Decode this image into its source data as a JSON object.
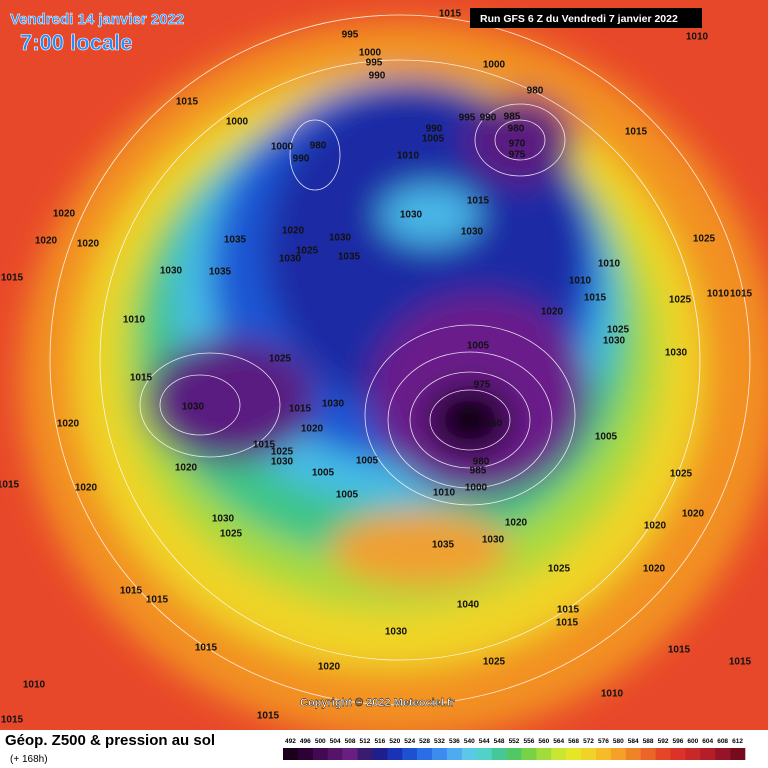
{
  "header": {
    "date": "Vendredi 14 janvier 2022",
    "time": "7:00 locale",
    "run": "Run GFS 6 Z du Vendredi 7 janvier 2022"
  },
  "map": {
    "copyright": "Copyright © 2022 Meteociel.fr",
    "pressure_labels": [
      1015,
      1010,
      995,
      1000,
      995,
      990,
      1000,
      980,
      1015,
      1000,
      985,
      980,
      970,
      975,
      995,
      990,
      990,
      1005,
      1010,
      1000,
      980,
      990,
      1015,
      1015,
      1030,
      1030,
      1035,
      1020,
      1025,
      1030,
      1035,
      1030,
      1020,
      1020,
      1020,
      1015,
      1030,
      1035,
      1010,
      1010,
      1015,
      1020,
      1025,
      1025,
      1010,
      1015,
      1025,
      1030,
      1030,
      1010,
      1005,
      1025,
      975,
      970,
      960,
      1005,
      1015,
      1030,
      1015,
      1030,
      1020,
      1020,
      1015,
      1025,
      1030,
      1005,
      1005,
      980,
      985,
      1000,
      1010,
      1005,
      1020,
      1020,
      1015,
      1030,
      1025,
      1020,
      1035,
      1030,
      1020,
      1020,
      1025,
      1025,
      1020,
      1015,
      1015,
      1040,
      1015,
      1015,
      1030,
      1025,
      1015,
      1020,
      1010,
      1015,
      1015,
      1010,
      1015,
      1015
    ]
  },
  "legend": {
    "title": "Géop. Z500 & pression au sol",
    "subtitle": "(+ 168h)",
    "values": [
      492,
      496,
      500,
      504,
      508,
      512,
      516,
      520,
      524,
      528,
      532,
      536,
      540,
      544,
      548,
      552,
      556,
      560,
      564,
      568,
      572,
      576,
      580,
      584,
      588,
      592,
      596,
      600,
      604,
      608,
      612
    ],
    "colors": [
      "#1a001a",
      "#2d0036",
      "#420a52",
      "#561468",
      "#6a1e80",
      "#3a1c6e",
      "#1e1e8c",
      "#1a32b4",
      "#1e50d2",
      "#2a6ee6",
      "#3c8cf0",
      "#50aaf0",
      "#5ac8e6",
      "#50d2c8",
      "#46c896",
      "#50c864",
      "#78d246",
      "#a0dc3c",
      "#c8e632",
      "#e6e628",
      "#f0d228",
      "#f5bc28",
      "#f5a028",
      "#f08228",
      "#eb6428",
      "#e64628",
      "#dc3228",
      "#c82828",
      "#b41e28",
      "#961428",
      "#780a1e"
    ]
  }
}
